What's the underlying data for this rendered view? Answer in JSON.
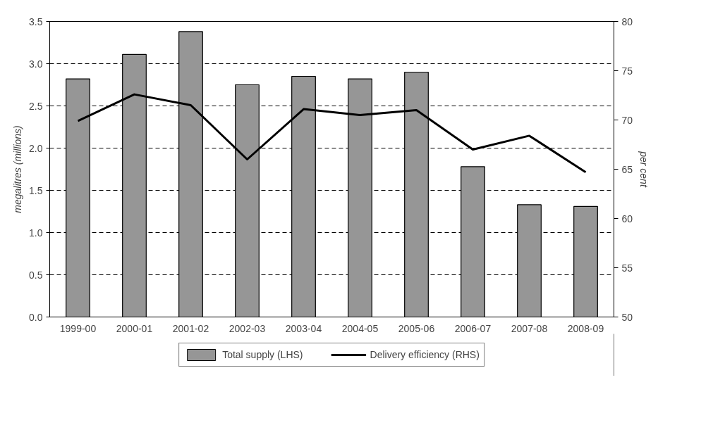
{
  "chart_data": {
    "type": "bar",
    "categories": [
      "1999-00",
      "2000-01",
      "2001-02",
      "2002-03",
      "2003-04",
      "2004-05",
      "2005-06",
      "2006-07",
      "2007-08",
      "2008-09"
    ],
    "ylabel": "megalitres (millions)",
    "y2label": "per cent",
    "ylim": [
      0,
      3.5
    ],
    "yticks": [
      {
        "value": 0,
        "label": "0.0"
      },
      {
        "value": 0.5,
        "label": "0.5"
      },
      {
        "value": 1,
        "label": "1.0"
      },
      {
        "value": 1.5,
        "label": "1.5"
      },
      {
        "value": 2,
        "label": "2.0"
      },
      {
        "value": 2.5,
        "label": "2.5"
      },
      {
        "value": 3,
        "label": "3.0"
      },
      {
        "value": 3.5,
        "label": "3.5"
      }
    ],
    "y2lim": [
      50,
      80
    ],
    "y2ticks": [
      50,
      55,
      60,
      65,
      70,
      75,
      80
    ],
    "grid": "y",
    "legend": "bottom",
    "series": [
      {
        "name": "Total supply (LHS)",
        "color": "#969696",
        "values": [
          2.82,
          3.11,
          3.38,
          2.75,
          2.85,
          2.82,
          2.9,
          1.78,
          1.33,
          1.31
        ]
      },
      {
        "name": "Delivery efficiency (RHS)",
        "type": "line",
        "axis": "y2",
        "color": "#000000",
        "line_style": "solid",
        "values": [
          69.9,
          72.6,
          71.5,
          66.0,
          71.1,
          70.5,
          71.0,
          67.0,
          68.4,
          64.7
        ]
      }
    ]
  }
}
